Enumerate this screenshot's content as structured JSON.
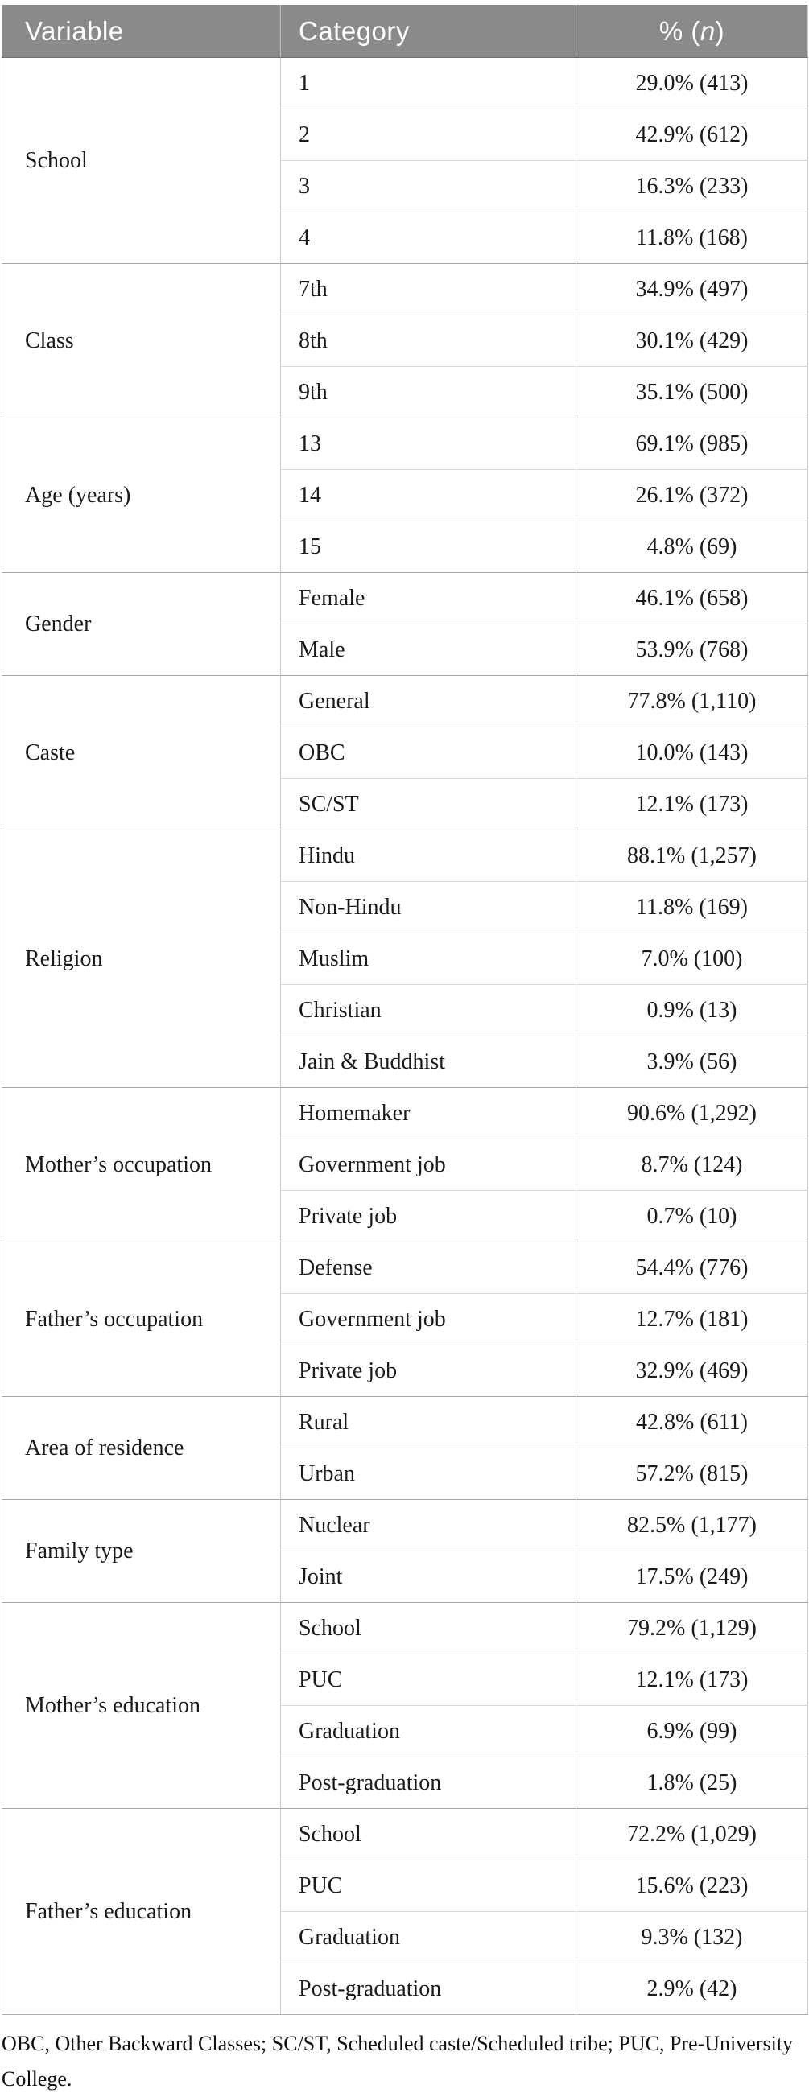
{
  "table": {
    "columns": [
      "Variable",
      "Category"
    ],
    "percent_header": {
      "prefix": "% (",
      "italic": "n",
      "suffix": ")"
    },
    "header_bg": "#8a8a8a",
    "header_text_color": "#ffffff",
    "groups": [
      {
        "variable": "School",
        "rows": [
          {
            "category": "1",
            "value": "29.0% (413)"
          },
          {
            "category": "2",
            "value": "42.9% (612)"
          },
          {
            "category": "3",
            "value": "16.3% (233)"
          },
          {
            "category": "4",
            "value": "11.8% (168)"
          }
        ]
      },
      {
        "variable": "Class",
        "rows": [
          {
            "category": "7th",
            "value": "34.9% (497)"
          },
          {
            "category": "8th",
            "value": "30.1% (429)"
          },
          {
            "category": "9th",
            "value": "35.1% (500)"
          }
        ]
      },
      {
        "variable": "Age (years)",
        "rows": [
          {
            "category": "13",
            "value": "69.1% (985)"
          },
          {
            "category": "14",
            "value": "26.1% (372)"
          },
          {
            "category": "15",
            "value": "4.8% (69)"
          }
        ]
      },
      {
        "variable": "Gender",
        "rows": [
          {
            "category": "Female",
            "value": "46.1% (658)"
          },
          {
            "category": "Male",
            "value": "53.9% (768)"
          }
        ]
      },
      {
        "variable": "Caste",
        "rows": [
          {
            "category": "General",
            "value": "77.8% (1,110)"
          },
          {
            "category": "OBC",
            "value": "10.0% (143)"
          },
          {
            "category": "SC/ST",
            "value": "12.1% (173)"
          }
        ]
      },
      {
        "variable": "Religion",
        "rows": [
          {
            "category": "Hindu",
            "value": "88.1% (1,257)"
          },
          {
            "category": "Non-Hindu",
            "value": "11.8% (169)"
          },
          {
            "category": "Muslim",
            "value": "7.0% (100)"
          },
          {
            "category": "Christian",
            "value": "0.9% (13)"
          },
          {
            "category": "Jain & Buddhist",
            "value": "3.9% (56)"
          }
        ]
      },
      {
        "variable": "Mother’s occupation",
        "rows": [
          {
            "category": "Homemaker",
            "value": "90.6% (1,292)"
          },
          {
            "category": "Government job",
            "value": "8.7% (124)"
          },
          {
            "category": "Private job",
            "value": "0.7% (10)"
          }
        ]
      },
      {
        "variable": "Father’s occupation",
        "rows": [
          {
            "category": "Defense",
            "value": "54.4% (776)"
          },
          {
            "category": "Government job",
            "value": "12.7% (181)"
          },
          {
            "category": "Private job",
            "value": "32.9% (469)"
          }
        ]
      },
      {
        "variable": "Area of residence",
        "rows": [
          {
            "category": "Rural",
            "value": "42.8% (611)"
          },
          {
            "category": "Urban",
            "value": "57.2% (815)"
          }
        ]
      },
      {
        "variable": "Family type",
        "rows": [
          {
            "category": "Nuclear",
            "value": "82.5% (1,177)"
          },
          {
            "category": "Joint",
            "value": "17.5% (249)"
          }
        ]
      },
      {
        "variable": "Mother’s education",
        "rows": [
          {
            "category": "School",
            "value": "79.2% (1,129)"
          },
          {
            "category": "PUC",
            "value": "12.1% (173)"
          },
          {
            "category": "Graduation",
            "value": "6.9% (99)"
          },
          {
            "category": "Post-graduation",
            "value": "1.8% (25)"
          }
        ]
      },
      {
        "variable": "Father’s education",
        "rows": [
          {
            "category": "School",
            "value": "72.2% (1,029)"
          },
          {
            "category": "PUC",
            "value": "15.6% (223)"
          },
          {
            "category": "Graduation",
            "value": "9.3% (132)"
          },
          {
            "category": "Post-graduation",
            "value": "2.9% (42)"
          }
        ]
      }
    ]
  },
  "footnote": {
    "lines": [
      "OBC, Other Backward Classes; SC/ST, Scheduled caste/Scheduled tribe; PUC, Pre-University",
      "College."
    ]
  }
}
